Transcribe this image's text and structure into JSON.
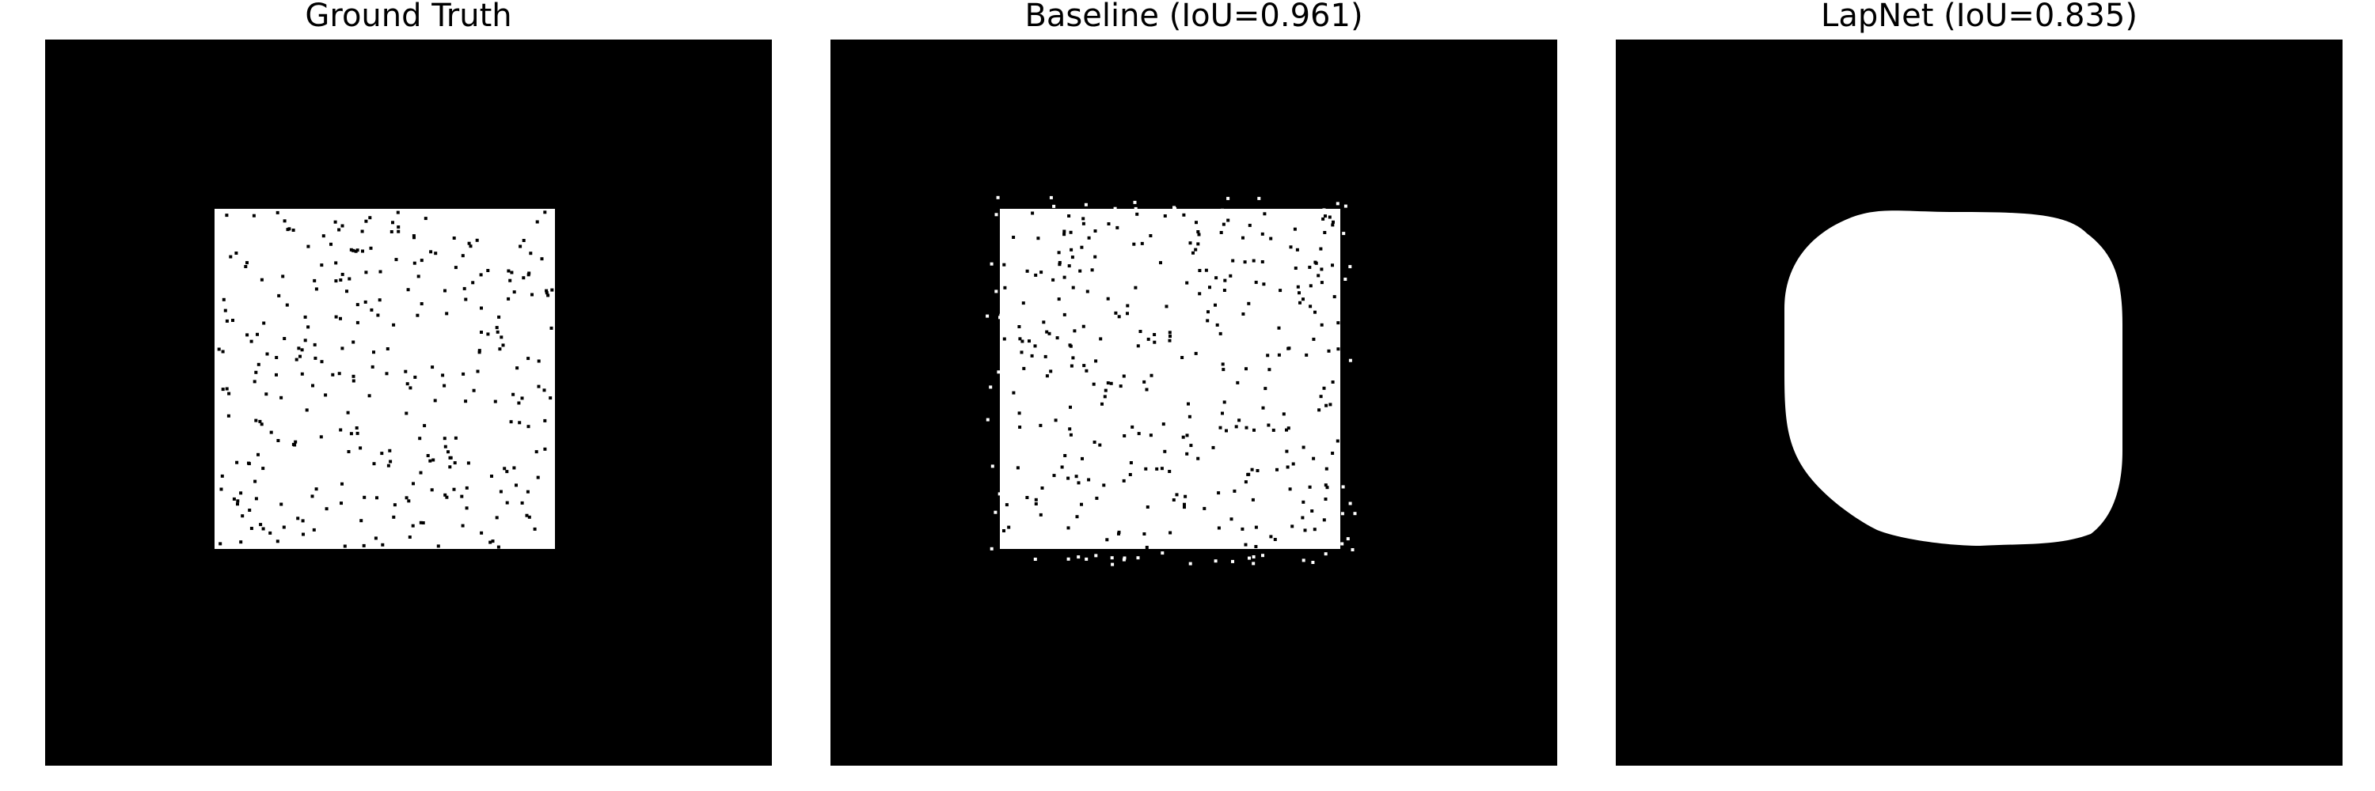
{
  "panels": [
    {
      "title": "Ground Truth",
      "mask": "square-with-noise"
    },
    {
      "title": "Baseline (IoU=0.961)",
      "mask": "square-with-noise-and-outliers"
    },
    {
      "title": "LapNet (IoU=0.835)",
      "mask": "rounded-blob"
    }
  ],
  "colors": {
    "background": "#000000",
    "foreground": "#ffffff",
    "page": "#ffffff"
  }
}
